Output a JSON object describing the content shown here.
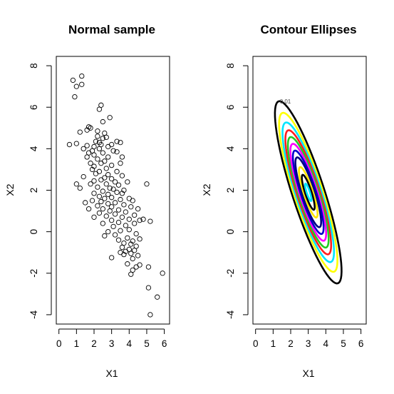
{
  "chart_data": [
    {
      "type": "scatter",
      "title": "Normal sample",
      "xlabel": "X1",
      "ylabel": "X2",
      "xlim": [
        -0.15,
        6.3
      ],
      "ylim": [
        -4.45,
        8.45
      ],
      "xticks": [
        0,
        1,
        2,
        3,
        4,
        5,
        6
      ],
      "yticks": [
        -4,
        -2,
        0,
        2,
        4,
        6,
        8
      ],
      "marker": "open-circle",
      "point_color": "#000000",
      "points": [
        [
          0.8,
          7.3
        ],
        [
          1.3,
          7.5
        ],
        [
          1.0,
          7.0
        ],
        [
          1.3,
          7.1
        ],
        [
          0.9,
          6.5
        ],
        [
          2.4,
          6.1
        ],
        [
          2.3,
          5.9
        ],
        [
          2.9,
          5.5
        ],
        [
          2.5,
          5.3
        ],
        [
          1.8,
          5.0
        ],
        [
          1.6,
          4.9
        ],
        [
          1.7,
          5.05
        ],
        [
          1.2,
          4.8
        ],
        [
          2.2,
          4.85
        ],
        [
          2.6,
          4.75
        ],
        [
          2.2,
          4.6
        ],
        [
          2.5,
          4.5
        ],
        [
          2.7,
          4.55
        ],
        [
          2.1,
          4.35
        ],
        [
          2.3,
          4.3
        ],
        [
          3.5,
          4.3
        ],
        [
          3.3,
          4.35
        ],
        [
          0.6,
          4.2
        ],
        [
          1.0,
          4.25
        ],
        [
          1.6,
          4.15
        ],
        [
          2.0,
          4.1
        ],
        [
          2.4,
          4.2
        ],
        [
          2.8,
          4.1
        ],
        [
          3.0,
          4.2
        ],
        [
          1.4,
          4.0
        ],
        [
          1.9,
          3.9
        ],
        [
          2.3,
          4.0
        ],
        [
          3.1,
          3.9
        ],
        [
          1.7,
          3.8
        ],
        [
          2.5,
          3.8
        ],
        [
          3.3,
          3.85
        ],
        [
          1.6,
          3.6
        ],
        [
          2.0,
          3.7
        ],
        [
          2.8,
          3.6
        ],
        [
          3.6,
          3.6
        ],
        [
          2.2,
          3.5
        ],
        [
          2.6,
          3.4
        ],
        [
          1.8,
          3.3
        ],
        [
          2.4,
          3.3
        ],
        [
          3.0,
          3.2
        ],
        [
          3.5,
          3.3
        ],
        [
          2.0,
          3.15
        ],
        [
          2.7,
          3.05
        ],
        [
          1.9,
          3.0
        ],
        [
          2.3,
          2.9
        ],
        [
          3.3,
          2.9
        ],
        [
          2.1,
          2.8
        ],
        [
          2.8,
          2.75
        ],
        [
          3.6,
          2.7
        ],
        [
          1.4,
          2.65
        ],
        [
          2.6,
          2.6
        ],
        [
          3.0,
          2.55
        ],
        [
          2.0,
          2.45
        ],
        [
          2.4,
          2.5
        ],
        [
          3.2,
          2.4
        ],
        [
          3.9,
          2.4
        ],
        [
          5.0,
          2.3
        ],
        [
          1.8,
          2.3
        ],
        [
          2.7,
          2.3
        ],
        [
          3.4,
          2.25
        ],
        [
          1.0,
          2.3
        ],
        [
          2.2,
          2.15
        ],
        [
          2.9,
          2.1
        ],
        [
          3.1,
          2.05
        ],
        [
          3.7,
          2.0
        ],
        [
          1.2,
          2.1
        ],
        [
          2.5,
          1.95
        ],
        [
          3.3,
          1.9
        ],
        [
          2.0,
          1.85
        ],
        [
          2.8,
          1.8
        ],
        [
          3.6,
          1.85
        ],
        [
          2.3,
          1.7
        ],
        [
          3.0,
          1.65
        ],
        [
          4.0,
          1.6
        ],
        [
          2.6,
          1.6
        ],
        [
          3.5,
          1.55
        ],
        [
          1.9,
          1.5
        ],
        [
          2.4,
          1.45
        ],
        [
          3.2,
          1.4
        ],
        [
          4.2,
          1.5
        ],
        [
          1.5,
          1.4
        ],
        [
          2.8,
          1.35
        ],
        [
          3.7,
          1.3
        ],
        [
          2.2,
          1.25
        ],
        [
          3.0,
          1.2
        ],
        [
          4.1,
          1.2
        ],
        [
          2.5,
          1.1
        ],
        [
          3.4,
          1.05
        ],
        [
          1.7,
          1.1
        ],
        [
          4.5,
          1.1
        ],
        [
          2.9,
          1.0
        ],
        [
          3.8,
          0.95
        ],
        [
          2.3,
          0.9
        ],
        [
          3.2,
          0.85
        ],
        [
          4.3,
          0.8
        ],
        [
          2.7,
          0.75
        ],
        [
          3.6,
          0.7
        ],
        [
          2.0,
          0.7
        ],
        [
          4.0,
          0.6
        ],
        [
          3.0,
          0.55
        ],
        [
          4.6,
          0.55
        ],
        [
          5.2,
          0.5
        ],
        [
          3.4,
          0.45
        ],
        [
          2.5,
          0.4
        ],
        [
          4.3,
          0.4
        ],
        [
          3.8,
          0.3
        ],
        [
          3.1,
          0.25
        ],
        [
          4.8,
          0.6
        ],
        [
          4.0,
          0.1
        ],
        [
          3.5,
          0.05
        ],
        [
          2.8,
          0.0
        ],
        [
          4.4,
          -0.1
        ],
        [
          3.2,
          -0.15
        ],
        [
          2.6,
          -0.2
        ],
        [
          3.9,
          -0.3
        ],
        [
          4.6,
          -0.35
        ],
        [
          3.4,
          -0.4
        ],
        [
          4.2,
          -0.45
        ],
        [
          3.7,
          -0.55
        ],
        [
          4.1,
          -0.6
        ],
        [
          4.4,
          -0.7
        ],
        [
          3.6,
          -0.75
        ],
        [
          4.0,
          -0.85
        ],
        [
          3.8,
          -0.95
        ],
        [
          4.3,
          -0.9
        ],
        [
          3.5,
          -1.0
        ],
        [
          4.1,
          -1.05
        ],
        [
          3.7,
          -1.1
        ],
        [
          4.5,
          -1.15
        ],
        [
          3.0,
          -1.25
        ],
        [
          4.2,
          -1.3
        ],
        [
          4.6,
          -1.6
        ],
        [
          3.9,
          -1.55
        ],
        [
          4.4,
          -1.7
        ],
        [
          4.2,
          -1.85
        ],
        [
          5.1,
          -1.7
        ],
        [
          4.1,
          -2.05
        ],
        [
          5.9,
          -2.0
        ],
        [
          5.1,
          -2.7
        ],
        [
          5.6,
          -3.15
        ],
        [
          5.2,
          -4.0
        ]
      ]
    },
    {
      "type": "contour",
      "title": "Contour Ellipses",
      "xlabel": "X1",
      "ylabel": "X2",
      "xlim": [
        -0.15,
        6.3
      ],
      "ylim": [
        -4.45,
        8.45
      ],
      "xticks": [
        0,
        1,
        2,
        3,
        4,
        5,
        6
      ],
      "yticks": [
        -4,
        -2,
        0,
        2,
        4,
        6,
        8
      ],
      "center": [
        3.0,
        1.9
      ],
      "major_semi_axis_direction": [
        -0.362,
        0.932
      ],
      "levels": [
        {
          "label": "0.01",
          "color": "#000000",
          "major": 4.7,
          "minor": 0.9
        },
        {
          "label": "",
          "color": "#FFFF00",
          "major": 4.1,
          "minor": 0.8
        },
        {
          "label": "",
          "color": "#00E5FF",
          "major": 3.6,
          "minor": 0.72
        },
        {
          "label": "",
          "color": "#FF2020",
          "major": 3.2,
          "minor": 0.64
        },
        {
          "label": "",
          "color": "#22CC22",
          "major": 2.85,
          "minor": 0.57
        },
        {
          "label": "",
          "color": "#FF00FF",
          "major": 2.5,
          "minor": 0.5
        },
        {
          "label": "",
          "color": "#0000CC",
          "major": 2.15,
          "minor": 0.43
        },
        {
          "label": "",
          "color": "#000080",
          "major": 1.8,
          "minor": 0.36
        },
        {
          "label": "",
          "color": "#FFE600",
          "major": 1.3,
          "minor": 0.26
        },
        {
          "label": "",
          "color": "#000000",
          "major": 0.9,
          "minor": 0.18
        },
        {
          "label": "",
          "color": "#00E5FF",
          "major": 0.45,
          "minor": 0.09
        }
      ]
    }
  ]
}
